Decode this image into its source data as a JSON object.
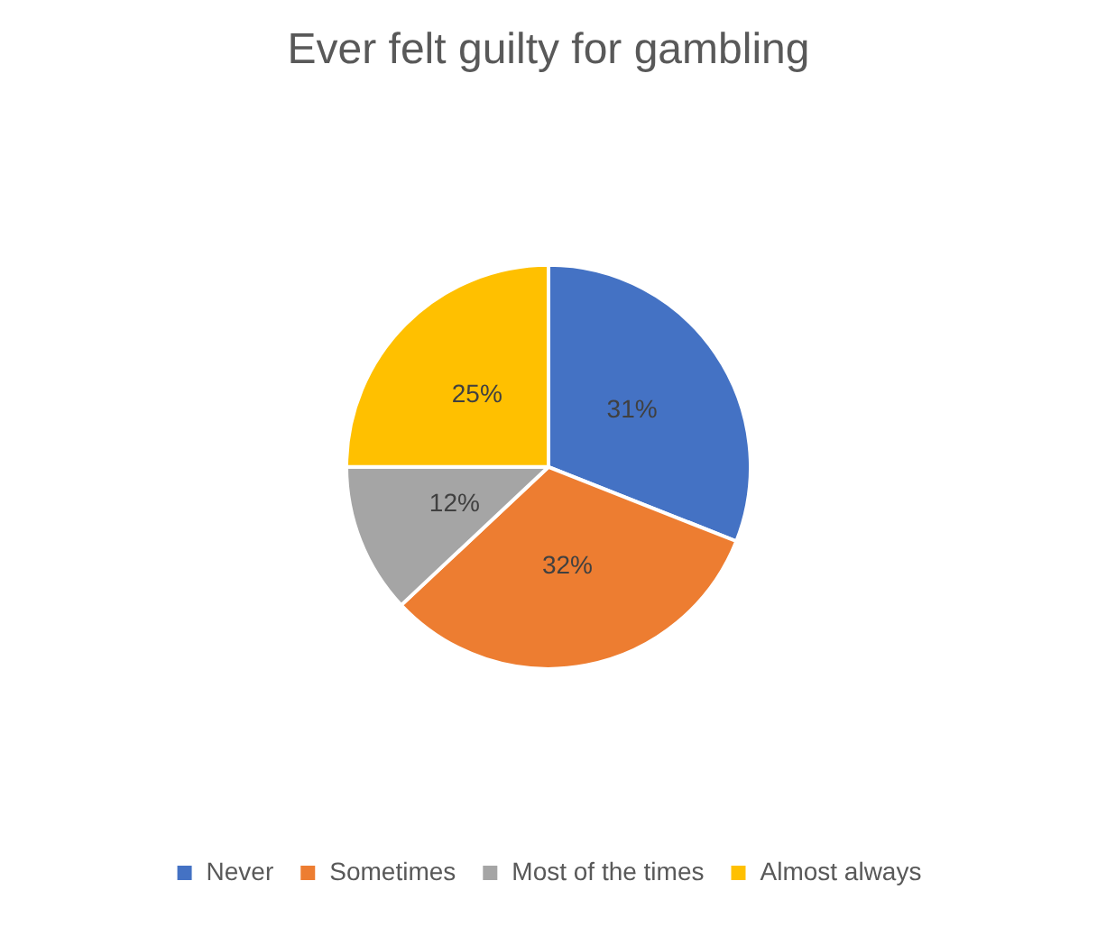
{
  "chart_data": {
    "type": "pie",
    "title": "Ever felt guilty for gambling",
    "categories": [
      "Never",
      "Sometimes",
      "Most of the times",
      "Almost always"
    ],
    "values": [
      31,
      32,
      12,
      25
    ],
    "colors": [
      "#4472c4",
      "#ed7d31",
      "#a5a5a5",
      "#ffc000"
    ],
    "value_labels": [
      "31%",
      "32%",
      "12%",
      "25%"
    ],
    "legend": "bottom"
  }
}
